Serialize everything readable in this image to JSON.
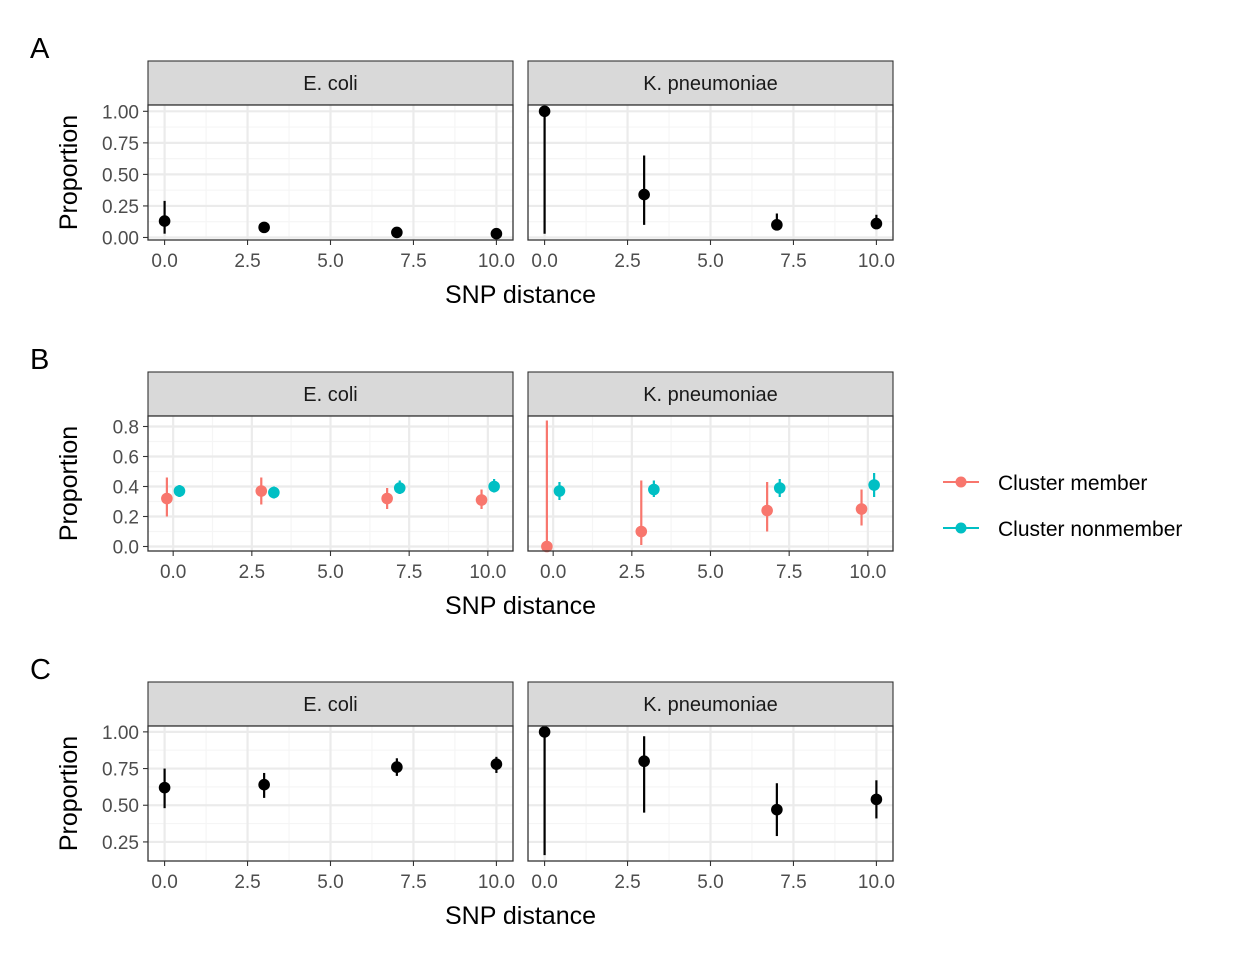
{
  "colors": {
    "black": "#000000",
    "cluster_member": "#F8766D",
    "cluster_nonmember": "#00BFC4",
    "strip_fill": "#D9D9D9",
    "grid_major": "#EBEBEB",
    "grid_minor": "#F5F5F5",
    "axis_text": "#4D4D4D"
  },
  "legend": {
    "position": "right",
    "items": [
      {
        "label": "Cluster member",
        "color": "#F8766D"
      },
      {
        "label": "Cluster nonmember",
        "color": "#00BFC4"
      }
    ]
  },
  "chart_data": [
    {
      "tag": "A",
      "type": "scatter",
      "subtype": "pointrange",
      "xlabel": "SNP distance",
      "ylabel": "Proportion",
      "xlim": [
        -0.5,
        10.5
      ],
      "ylim": [
        -0.02,
        1.05
      ],
      "x_ticks": [
        "0.0",
        "2.5",
        "5.0",
        "7.5",
        "10.0"
      ],
      "y_ticks": [
        "0.00",
        "0.25",
        "0.50",
        "0.75",
        "1.00"
      ],
      "panels": [
        {
          "label": "E. coli",
          "series": [
            {
              "color": "#000000",
              "x": [
                0,
                3,
                7,
                10
              ],
              "y": [
                0.13,
                0.08,
                0.04,
                0.03
              ],
              "ymin": [
                0.03,
                0.05,
                0.03,
                0.02
              ],
              "ymax": [
                0.29,
                0.12,
                0.05,
                0.04
              ]
            }
          ]
        },
        {
          "label": "K. pneumoniae",
          "series": [
            {
              "color": "#000000",
              "x": [
                0,
                3,
                7,
                10
              ],
              "y": [
                1.0,
                0.34,
                0.1,
                0.11
              ],
              "ymin": [
                0.03,
                0.1,
                0.06,
                0.07
              ],
              "ymax": [
                1.0,
                0.65,
                0.19,
                0.18
              ]
            }
          ]
        }
      ]
    },
    {
      "tag": "B",
      "type": "scatter",
      "subtype": "pointrange",
      "xlabel": "SNP distance",
      "ylabel": "Proportion",
      "xlim": [
        -0.8,
        10.8
      ],
      "ylim": [
        -0.03,
        0.87
      ],
      "x_ticks": [
        "0.0",
        "2.5",
        "5.0",
        "7.5",
        "10.0"
      ],
      "y_ticks": [
        "0.0",
        "0.2",
        "0.4",
        "0.6",
        "0.8"
      ],
      "panels": [
        {
          "label": "E. coli",
          "series": [
            {
              "name": "Cluster member",
              "color": "#F8766D",
              "x": [
                -0.2,
                2.8,
                6.8,
                9.8
              ],
              "y": [
                0.32,
                0.37,
                0.32,
                0.31
              ],
              "ymin": [
                0.2,
                0.28,
                0.25,
                0.25
              ],
              "ymax": [
                0.46,
                0.46,
                0.39,
                0.38
              ]
            },
            {
              "name": "Cluster nonmember",
              "color": "#00BFC4",
              "x": [
                0.2,
                3.2,
                7.2,
                10.2
              ],
              "y": [
                0.37,
                0.36,
                0.39,
                0.4
              ],
              "ymin": [
                0.33,
                0.32,
                0.35,
                0.36
              ],
              "ymax": [
                0.41,
                0.4,
                0.44,
                0.45
              ]
            }
          ]
        },
        {
          "label": "K. pneumoniae",
          "series": [
            {
              "name": "Cluster member",
              "color": "#F8766D",
              "x": [
                -0.2,
                2.8,
                6.8,
                9.8
              ],
              "y": [
                0.0,
                0.1,
                0.24,
                0.25
              ],
              "ymin": [
                0.0,
                0.01,
                0.1,
                0.14
              ],
              "ymax": [
                0.84,
                0.44,
                0.43,
                0.38
              ]
            },
            {
              "name": "Cluster nonmember",
              "color": "#00BFC4",
              "x": [
                0.2,
                3.2,
                7.2,
                10.2
              ],
              "y": [
                0.37,
                0.38,
                0.39,
                0.41
              ],
              "ymin": [
                0.31,
                0.33,
                0.33,
                0.33
              ],
              "ymax": [
                0.43,
                0.44,
                0.45,
                0.49
              ]
            }
          ]
        }
      ]
    },
    {
      "tag": "C",
      "type": "scatter",
      "subtype": "pointrange",
      "xlabel": "SNP distance",
      "ylabel": "Proportion",
      "xlim": [
        -0.5,
        10.5
      ],
      "ylim": [
        0.12,
        1.04
      ],
      "x_ticks": [
        "0.0",
        "2.5",
        "5.0",
        "7.5",
        "10.0"
      ],
      "y_ticks": [
        "0.25",
        "0.50",
        "0.75",
        "1.00"
      ],
      "panels": [
        {
          "label": "E. coli",
          "series": [
            {
              "color": "#000000",
              "x": [
                0,
                3,
                7,
                10
              ],
              "y": [
                0.62,
                0.64,
                0.76,
                0.78
              ],
              "ymin": [
                0.48,
                0.55,
                0.7,
                0.72
              ],
              "ymax": [
                0.75,
                0.72,
                0.82,
                0.83
              ]
            }
          ]
        },
        {
          "label": "K. pneumoniae",
          "series": [
            {
              "color": "#000000",
              "x": [
                0,
                3,
                7,
                10
              ],
              "y": [
                1.0,
                0.8,
                0.47,
                0.54
              ],
              "ymin": [
                0.16,
                0.45,
                0.29,
                0.41
              ],
              "ymax": [
                1.0,
                0.97,
                0.65,
                0.67
              ]
            }
          ]
        }
      ]
    }
  ]
}
